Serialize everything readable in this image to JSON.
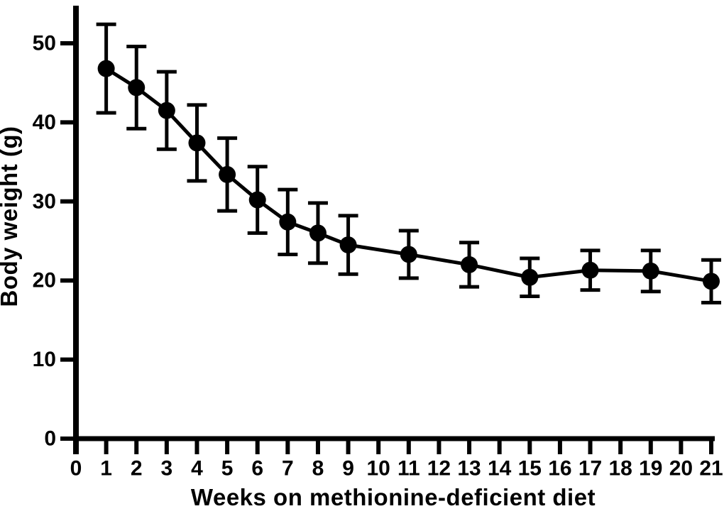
{
  "figure": {
    "background": "#ffffff",
    "ink_color": "#000000"
  },
  "chart_data": {
    "type": "line",
    "title": "",
    "xlabel": "Weeks on methionine-deficient diet",
    "ylabel": "Body weight (g)",
    "xlim": [
      0,
      21
    ],
    "ylim": [
      0,
      50
    ],
    "x_ticks": [
      0,
      1,
      2,
      3,
      4,
      5,
      6,
      7,
      8,
      9,
      10,
      11,
      12,
      13,
      14,
      15,
      16,
      17,
      18,
      19,
      20,
      21
    ],
    "y_ticks": [
      0,
      10,
      20,
      30,
      40,
      50
    ],
    "grid": false,
    "legend_position": "none",
    "marker": "filled-circle",
    "error_bars": "symmetric-caps",
    "series": [
      {
        "name": "Body weight",
        "x": [
          1,
          2,
          3,
          4,
          5,
          6,
          7,
          8,
          9,
          11,
          13,
          15,
          17,
          19,
          21
        ],
        "y": [
          46.8,
          44.4,
          41.5,
          37.4,
          33.4,
          30.2,
          27.4,
          26.0,
          24.5,
          23.3,
          22.0,
          20.4,
          21.3,
          21.2,
          19.9
        ],
        "error": [
          5.6,
          5.2,
          4.9,
          4.8,
          4.6,
          4.2,
          4.1,
          3.8,
          3.7,
          3.0,
          2.8,
          2.4,
          2.5,
          2.6,
          2.7
        ]
      }
    ]
  }
}
